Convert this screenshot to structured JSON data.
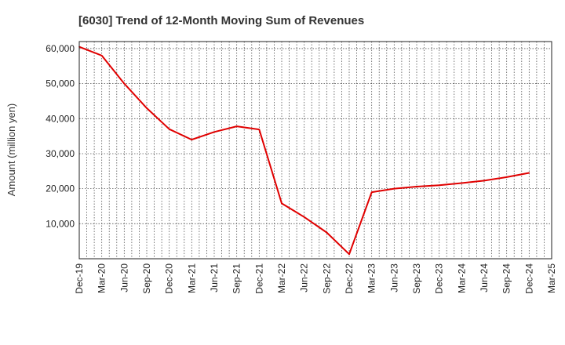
{
  "chart_data": {
    "type": "line",
    "title": "[6030]  Trend of 12-Month Moving Sum of Revenues",
    "xlabel": "",
    "ylabel": "Amount (million yen)",
    "ylim": [
      0,
      62000
    ],
    "yticks": [
      10000,
      20000,
      30000,
      40000,
      50000,
      60000
    ],
    "ytick_labels": [
      "10,000",
      "20,000",
      "30,000",
      "40,000",
      "50,000",
      "60,000"
    ],
    "x_tick_labels": [
      "Dec-19",
      "Mar-20",
      "Jun-20",
      "Sep-20",
      "Dec-20",
      "Mar-21",
      "Jun-21",
      "Sep-21",
      "Dec-21",
      "Mar-22",
      "Jun-22",
      "Sep-22",
      "Dec-22",
      "Mar-23",
      "Jun-23",
      "Sep-23",
      "Dec-23",
      "Mar-24",
      "Jun-24",
      "Sep-24",
      "Dec-24",
      "Mar-25"
    ],
    "grid": true,
    "line_color": "#e00000",
    "series": [
      {
        "x": [
          "Dec-19",
          "Mar-20",
          "Jun-20",
          "Sep-20",
          "Dec-20",
          "Mar-21",
          "Jun-21",
          "Sep-21",
          "Dec-21",
          "Mar-22",
          "Jun-22",
          "Sep-22",
          "Dec-22",
          "Mar-23",
          "Jun-23",
          "Sep-23",
          "Dec-23",
          "Mar-24",
          "Jun-24",
          "Sep-24",
          "Dec-24"
        ],
        "values": [
          60500,
          58000,
          50000,
          43000,
          37000,
          34000,
          36200,
          37800,
          36900,
          15800,
          11900,
          7500,
          1300,
          19000,
          20000,
          20600,
          21000,
          21600,
          22300,
          23300,
          24500
        ]
      }
    ]
  }
}
